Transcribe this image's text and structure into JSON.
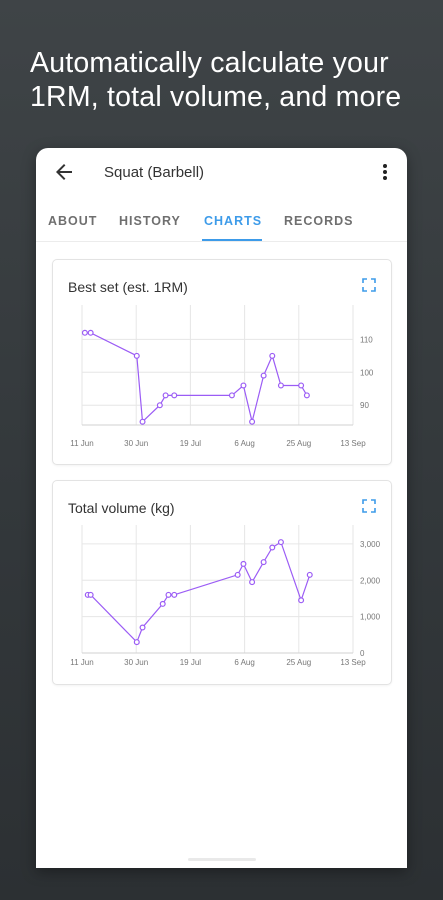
{
  "headline": {
    "line1": "Automatically calculate your",
    "line2": "1RM, total volume, and more"
  },
  "appbar": {
    "title": "Squat (Barbell)",
    "back_icon": "arrow-back-icon",
    "menu_icon": "more-vert-icon"
  },
  "tabs": [
    {
      "label": "ABOUT",
      "active": false
    },
    {
      "label": "HISTORY",
      "active": false
    },
    {
      "label": "CHARTS",
      "active": true
    },
    {
      "label": "RECORDS",
      "active": false
    }
  ],
  "colors": {
    "accent": "#3d9be9",
    "series": "#9b5cf5",
    "grid": "#e6e6e6",
    "background": "#383d40"
  },
  "cards": [
    {
      "title": "Best set (est. 1RM)",
      "icon": "fullscreen-icon"
    },
    {
      "title": "Total volume (kg)",
      "icon": "fullscreen-icon"
    }
  ],
  "chart_data": [
    {
      "type": "line",
      "title": "Best set (est. 1RM)",
      "x_ticks": [
        "11 Jun",
        "30 Jun",
        "19 Jul",
        "6 Aug",
        "25 Aug",
        "13 Sep"
      ],
      "y_ticks": [
        "90",
        "100",
        "110"
      ],
      "xlim": [
        "2021-06-11",
        "2021-09-13"
      ],
      "ylim": [
        84,
        118
      ],
      "grid": true,
      "series": [
        {
          "x": [
            "2021-06-12",
            "2021-06-14",
            "2021-06-30",
            "2021-07-02",
            "2021-07-08",
            "2021-07-10",
            "2021-07-13",
            "2021-08-02",
            "2021-08-06",
            "2021-08-09",
            "2021-08-13",
            "2021-08-16",
            "2021-08-19",
            "2021-08-26",
            "2021-08-28"
          ],
          "values": [
            112,
            112,
            105,
            85,
            90,
            93,
            93,
            93,
            96,
            85,
            99,
            105,
            96,
            96,
            93
          ]
        }
      ]
    },
    {
      "type": "line",
      "title": "Total volume (kg)",
      "x_ticks": [
        "11 Jun",
        "30 Jun",
        "19 Jul",
        "6 Aug",
        "25 Aug",
        "13 Sep"
      ],
      "y_ticks": [
        "0",
        "1,000",
        "2,000",
        "3,000"
      ],
      "xlim": [
        "2021-06-11",
        "2021-09-13"
      ],
      "ylim": [
        0,
        3300
      ],
      "grid": true,
      "series": [
        {
          "x": [
            "2021-06-13",
            "2021-06-14",
            "2021-06-30",
            "2021-07-02",
            "2021-07-09",
            "2021-07-11",
            "2021-07-13",
            "2021-08-04",
            "2021-08-06",
            "2021-08-09",
            "2021-08-13",
            "2021-08-16",
            "2021-08-19",
            "2021-08-26",
            "2021-08-29"
          ],
          "values": [
            1600,
            1600,
            300,
            700,
            1350,
            1600,
            1600,
            2150,
            2450,
            1950,
            2500,
            2900,
            3050,
            1450,
            2150
          ]
        }
      ]
    }
  ]
}
